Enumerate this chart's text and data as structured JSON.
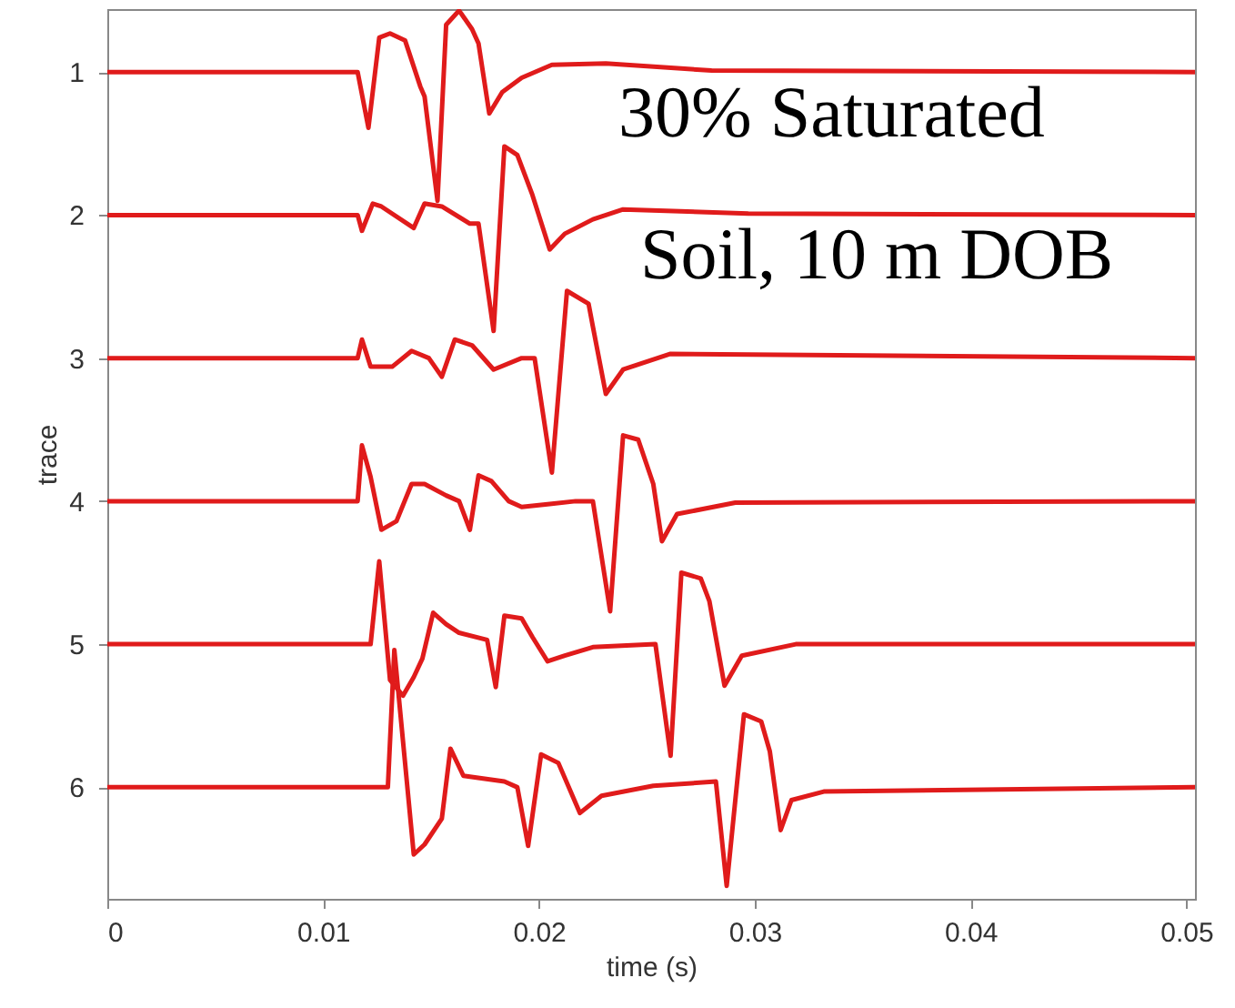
{
  "chart_data": {
    "type": "line",
    "xlabel": "time (s)",
    "ylabel": "trace",
    "xlim": [
      0,
      0.0504
    ],
    "ylim": [
      6.78,
      0.56
    ],
    "xticks": [
      0,
      0.01,
      0.02,
      0.03,
      0.04,
      0.05
    ],
    "yticks": [
      1,
      2,
      3,
      4,
      5,
      6
    ],
    "annotations": [
      "30% Saturated",
      "Soil, 10 m DOB"
    ],
    "series": [
      {
        "color": "#e01b1b",
        "x": [
          0,
          0.0116,
          0.0121,
          0.0126,
          0.0131,
          0.0138,
          0.0145,
          0.0147,
          0.0153,
          0.0157,
          0.0163,
          0.0169,
          0.0172,
          0.0177,
          0.0183,
          0.0192,
          0.0206,
          0.0231,
          0.028,
          0.0504
        ],
        "values": [
          1,
          1,
          1.39,
          0.76,
          0.73,
          0.78,
          1.1,
          1.17,
          1.9,
          0.67,
          0.57,
          0.7,
          0.8,
          1.29,
          1.14,
          1.04,
          0.95,
          0.94,
          0.99,
          1
        ]
      },
      {
        "color": "#e01b1b",
        "x": [
          0,
          0.0116,
          0.0118,
          0.0123,
          0.0127,
          0.0142,
          0.0147,
          0.0155,
          0.0168,
          0.0172,
          0.0179,
          0.0184,
          0.019,
          0.0197,
          0.0205,
          0.0212,
          0.0225,
          0.0239,
          0.0297,
          0.0504
        ],
        "values": [
          2,
          2,
          2.11,
          1.92,
          1.94,
          2.09,
          1.92,
          1.94,
          2.06,
          2.06,
          2.81,
          1.52,
          1.58,
          1.86,
          2.24,
          2.13,
          2.03,
          1.96,
          1.99,
          2
        ]
      },
      {
        "color": "#e01b1b",
        "x": [
          0,
          0.0116,
          0.0118,
          0.0122,
          0.0132,
          0.0141,
          0.0149,
          0.0155,
          0.0161,
          0.0169,
          0.0179,
          0.0192,
          0.0198,
          0.0206,
          0.0213,
          0.0223,
          0.0225,
          0.0231,
          0.0239,
          0.0261,
          0.0504
        ],
        "values": [
          3,
          3,
          2.87,
          3.06,
          3.06,
          2.95,
          3,
          3.13,
          2.87,
          2.91,
          3.08,
          3,
          3,
          3.8,
          2.53,
          2.62,
          2.78,
          3.25,
          3.08,
          2.97,
          3
        ]
      },
      {
        "color": "#e01b1b",
        "x": [
          0,
          0.0116,
          0.0118,
          0.0122,
          0.0127,
          0.0134,
          0.0141,
          0.0147,
          0.0157,
          0.0163,
          0.0168,
          0.0172,
          0.0178,
          0.0186,
          0.0192,
          0.0205,
          0.0217,
          0.0225,
          0.0233,
          0.0239,
          0.0246,
          0.0253,
          0.0257,
          0.0264,
          0.0291,
          0.0504
        ],
        "values": [
          4,
          4,
          3.61,
          3.83,
          4.2,
          4.14,
          3.88,
          3.88,
          3.96,
          4,
          4.2,
          3.82,
          3.86,
          4,
          4.04,
          4.02,
          4,
          4,
          4.77,
          3.54,
          3.57,
          3.88,
          4.28,
          4.09,
          4.01,
          4
        ]
      },
      {
        "color": "#e01b1b",
        "x": [
          0,
          0.0122,
          0.0126,
          0.0131,
          0.0137,
          0.0142,
          0.0146,
          0.0151,
          0.0157,
          0.0163,
          0.0176,
          0.018,
          0.0184,
          0.0192,
          0.0197,
          0.0204,
          0.0212,
          0.0225,
          0.0254,
          0.0261,
          0.0266,
          0.0275,
          0.0279,
          0.0286,
          0.0294,
          0.0319,
          0.0504
        ],
        "values": [
          5,
          5,
          4.42,
          5.25,
          5.36,
          5.23,
          5.1,
          4.78,
          4.86,
          4.92,
          4.97,
          5.3,
          4.8,
          4.82,
          4.95,
          5.12,
          5.08,
          5.02,
          5,
          5.78,
          4.5,
          4.54,
          4.7,
          5.29,
          5.08,
          5,
          5
        ]
      },
      {
        "color": "#e01b1b",
        "x": [
          0,
          0.013,
          0.0133,
          0.0142,
          0.0147,
          0.0155,
          0.0159,
          0.0165,
          0.0184,
          0.019,
          0.0195,
          0.0201,
          0.0209,
          0.0219,
          0.0229,
          0.0253,
          0.0282,
          0.0287,
          0.0295,
          0.0303,
          0.0307,
          0.0312,
          0.0317,
          0.0332,
          0.0504
        ],
        "values": [
          6,
          6,
          5.04,
          6.47,
          6.4,
          6.22,
          5.73,
          5.92,
          5.96,
          6,
          6.41,
          5.77,
          5.83,
          6.18,
          6.06,
          5.99,
          5.96,
          6.69,
          5.49,
          5.54,
          5.75,
          6.3,
          6.09,
          6.03,
          6
        ]
      }
    ]
  }
}
